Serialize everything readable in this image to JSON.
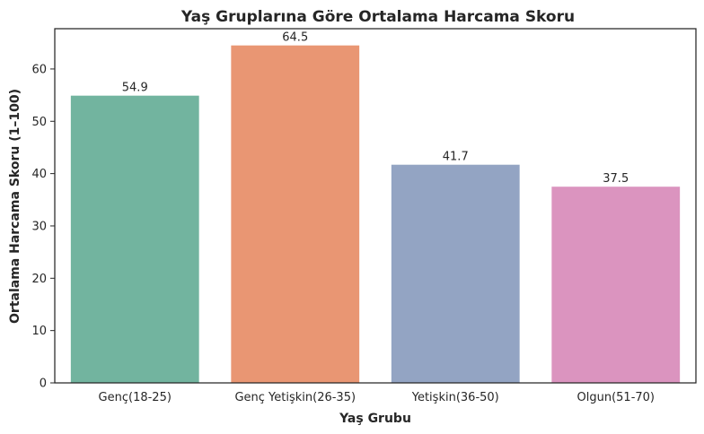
{
  "chart_data": {
    "type": "bar",
    "title": "Yaş Gruplarına Göre Ortalama Harcama Skoru",
    "xlabel": "Yaş Grubu",
    "ylabel": "Ortalama Harcama Skoru (1–100)",
    "categories": [
      "Genç(18-25)",
      "Genç Yetişkin(26-35)",
      "Yetişkin(36-50)",
      "Olgun(51-70)"
    ],
    "values": [
      54.9,
      64.5,
      41.7,
      37.5
    ],
    "value_labels": [
      "54.9",
      "64.5",
      "41.7",
      "37.5"
    ],
    "colors": [
      "#72b49f",
      "#e99673",
      "#93a4c3",
      "#db94bf"
    ],
    "ylim": [
      0,
      67.7
    ],
    "yticks": [
      0,
      10,
      20,
      30,
      40,
      50,
      60
    ],
    "grid": false,
    "legend": "none"
  }
}
